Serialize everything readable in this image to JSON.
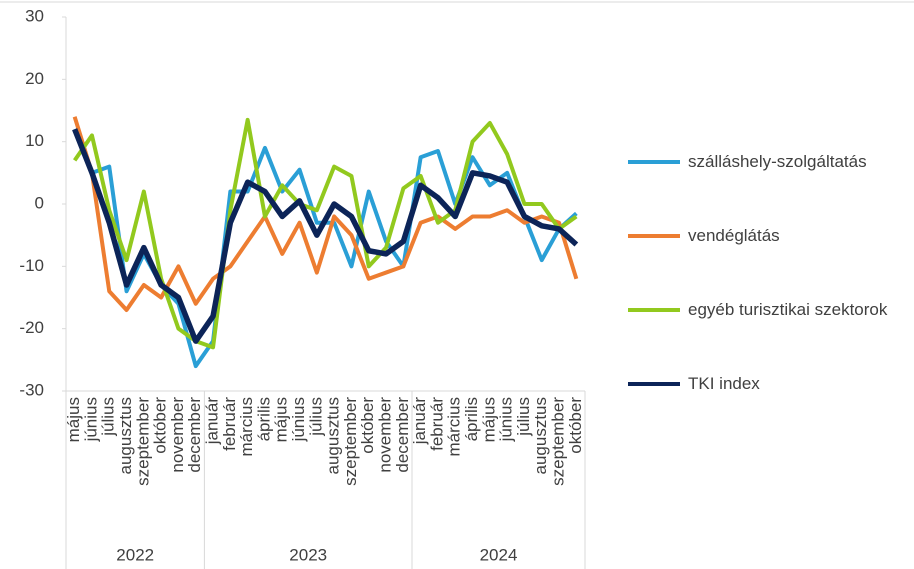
{
  "chart_data": {
    "type": "line",
    "groups": [
      {
        "label": "2022",
        "categories": [
          "május",
          "június",
          "július",
          "augusztus",
          "szeptember",
          "október",
          "november",
          "december"
        ]
      },
      {
        "label": "2023",
        "categories": [
          "január",
          "február",
          "március",
          "április",
          "május",
          "június",
          "július",
          "augusztus",
          "szeptember",
          "október",
          "november",
          "december"
        ]
      },
      {
        "label": "2024",
        "categories": [
          "január",
          "február",
          "március",
          "április",
          "május",
          "június",
          "július",
          "augusztus",
          "szeptember",
          "október"
        ]
      }
    ],
    "series": [
      {
        "name": "szálláshely-szolgáltatás",
        "color": "#2a9fd6",
        "width": 4,
        "values": [
          12,
          5,
          6,
          -14,
          -8,
          -13,
          -16,
          -26,
          -22,
          2,
          2,
          9,
          2,
          5.5,
          -3,
          -3,
          -10,
          2,
          -6,
          -10,
          7.5,
          8.5,
          0,
          7.5,
          3,
          5,
          -2,
          -9,
          -4,
          -1.5
        ]
      },
      {
        "name": "vendéglátás",
        "color": "#ed7d31",
        "width": 4,
        "values": [
          14,
          5,
          -14,
          -17,
          -13,
          -15,
          -10,
          -16,
          -12,
          -10,
          -6,
          -2,
          -8,
          -3,
          -11,
          -2,
          -5,
          -12,
          -11,
          -10,
          -3,
          -2,
          -4,
          -2,
          -2,
          -1,
          -3,
          -2,
          -3,
          -12
        ]
      },
      {
        "name": "egyéb turisztikai szektorok",
        "color": "#92c91e",
        "width": 4,
        "values": [
          7,
          11,
          -1,
          -9,
          2,
          -12,
          -20,
          -22,
          -23,
          -1,
          13.5,
          -2,
          3,
          0,
          -1,
          6,
          4.5,
          -10,
          -7,
          2.5,
          4.5,
          -3,
          -1,
          10,
          13,
          8,
          0,
          0,
          -4,
          -2
        ]
      },
      {
        "name": "TKI index",
        "color": "#0c2458",
        "width": 5.5,
        "values": [
          12,
          5,
          -3,
          -13,
          -7,
          -13,
          -15,
          -22,
          -18,
          -3,
          3.5,
          2,
          -2,
          0.5,
          -5,
          0,
          -2,
          -7.5,
          -8,
          -6,
          3,
          1,
          -2,
          5,
          4.5,
          3.5,
          -2,
          -3.5,
          -4,
          -6.5
        ]
      }
    ],
    "ylim": [
      -30,
      30
    ],
    "yticks": [
      -30,
      -20,
      -10,
      0,
      10,
      20,
      30
    ]
  }
}
